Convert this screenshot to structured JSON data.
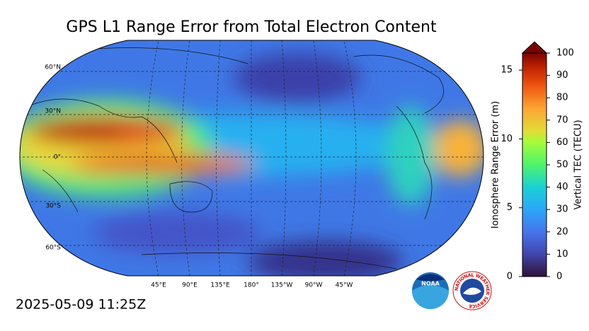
{
  "title": "GPS L1 Range Error from Total Electron Content",
  "timestamp": "2025-05-09 11:25Z",
  "map": {
    "lat_labels": [
      "60°N",
      "30°N",
      "0°",
      "30°S",
      "60°S"
    ],
    "lon_labels": [
      "45°E",
      "90°E",
      "135°E",
      "180°",
      "135°W",
      "90°W",
      "45°W"
    ]
  },
  "colorbar": {
    "left_axis": {
      "label": "Ionosphere Range Error (m)",
      "lim": [
        0,
        16.24
      ],
      "ticks": [
        0,
        5,
        10,
        15
      ]
    },
    "right_axis": {
      "label": "Vertical TEC (TECU)",
      "lim": [
        0,
        100
      ],
      "ticks": [
        0,
        10,
        20,
        30,
        40,
        50,
        60,
        70,
        80,
        90,
        100
      ]
    }
  },
  "logos": {
    "noaa": "NOAA",
    "nws": "NATIONAL WEATHER SERVICE"
  }
}
